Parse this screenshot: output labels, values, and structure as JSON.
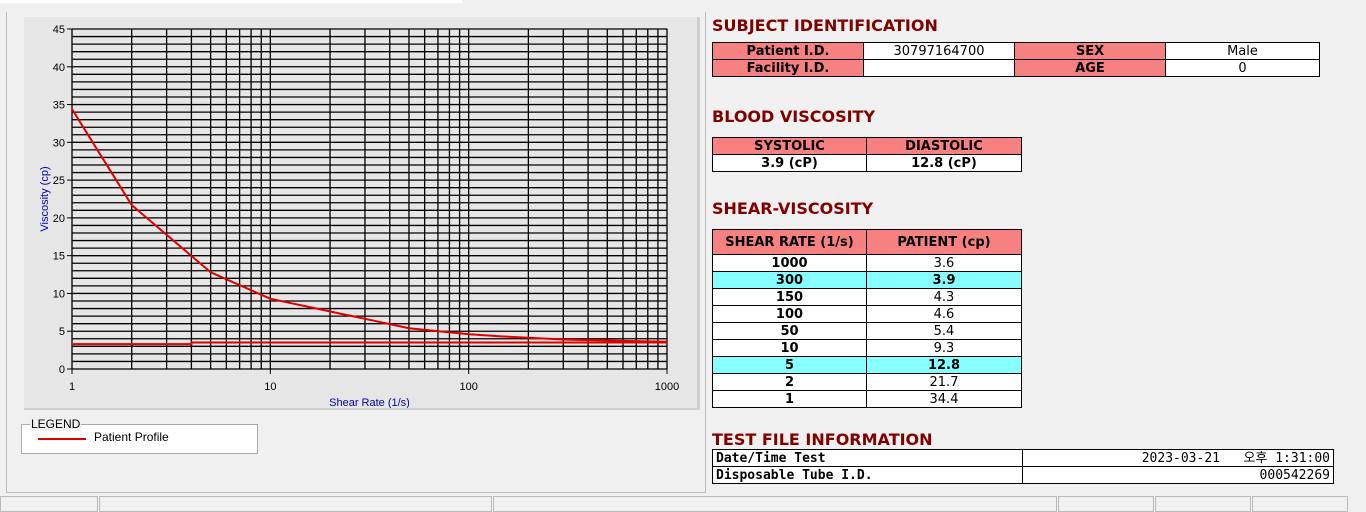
{
  "chart_data": {
    "type": "line",
    "xlabel": "Shear Rate (1/s)",
    "ylabel": "Viscosity (cp)",
    "xscale": "log",
    "xlim": [
      1,
      1000
    ],
    "ylim": [
      0,
      45
    ],
    "xticks": [
      "1",
      "10",
      "100",
      "1000"
    ],
    "yticks": [
      "0",
      "5",
      "10",
      "15",
      "20",
      "25",
      "30",
      "35",
      "40",
      "45"
    ],
    "grid": true,
    "series": [
      {
        "name": "Patient Profile",
        "color": "#e00000",
        "x": [
          1,
          2,
          5,
          10,
          50,
          100,
          150,
          300,
          1000
        ],
        "y": [
          34.4,
          21.7,
          12.8,
          9.3,
          5.4,
          4.6,
          4.3,
          3.9,
          3.6
        ]
      },
      {
        "color": "#e00000",
        "x": [
          1,
          4,
          4,
          1000
        ],
        "y": [
          3.3,
          3.3,
          3.5,
          3.5
        ]
      }
    ]
  },
  "legend": {
    "title": "LEGEND",
    "items": [
      {
        "label": "Patient Profile",
        "color": "#e00000"
      }
    ]
  },
  "subject": {
    "title": "SUBJECT IDENTIFICATION",
    "patient_id_label": "Patient I.D.",
    "patient_id": "30797164700",
    "sex_label": "SEX",
    "sex": "Male",
    "facility_label": "Facility I.D.",
    "facility": "",
    "age_label": "AGE",
    "age": "0"
  },
  "blood": {
    "title": "BLOOD VISCOSITY",
    "systolic_label": "SYSTOLIC",
    "diastolic_label": "DIASTOLIC",
    "systolic": "3.9 (cP)",
    "diastolic": "12.8 (cP)"
  },
  "shear": {
    "title": "SHEAR-VISCOSITY",
    "col1": "SHEAR RATE (1/s)",
    "col2": "PATIENT (cp)",
    "rows": [
      [
        "1000",
        "3.6"
      ],
      [
        "300",
        "3.9"
      ],
      [
        "150",
        "4.3"
      ],
      [
        "100",
        "4.6"
      ],
      [
        "50",
        "5.4"
      ],
      [
        "10",
        "9.3"
      ],
      [
        "5",
        "12.8"
      ],
      [
        "2",
        "21.7"
      ],
      [
        "1",
        "34.4"
      ]
    ],
    "highlight_color": "#88ffff"
  },
  "testfile": {
    "title": "TEST FILE INFORMATION",
    "date_label": "Date/Time Test",
    "date": "2023-03-21   오후 1:31:00",
    "tube_label": "Disposable Tube I.D.",
    "tube": "000542269"
  }
}
